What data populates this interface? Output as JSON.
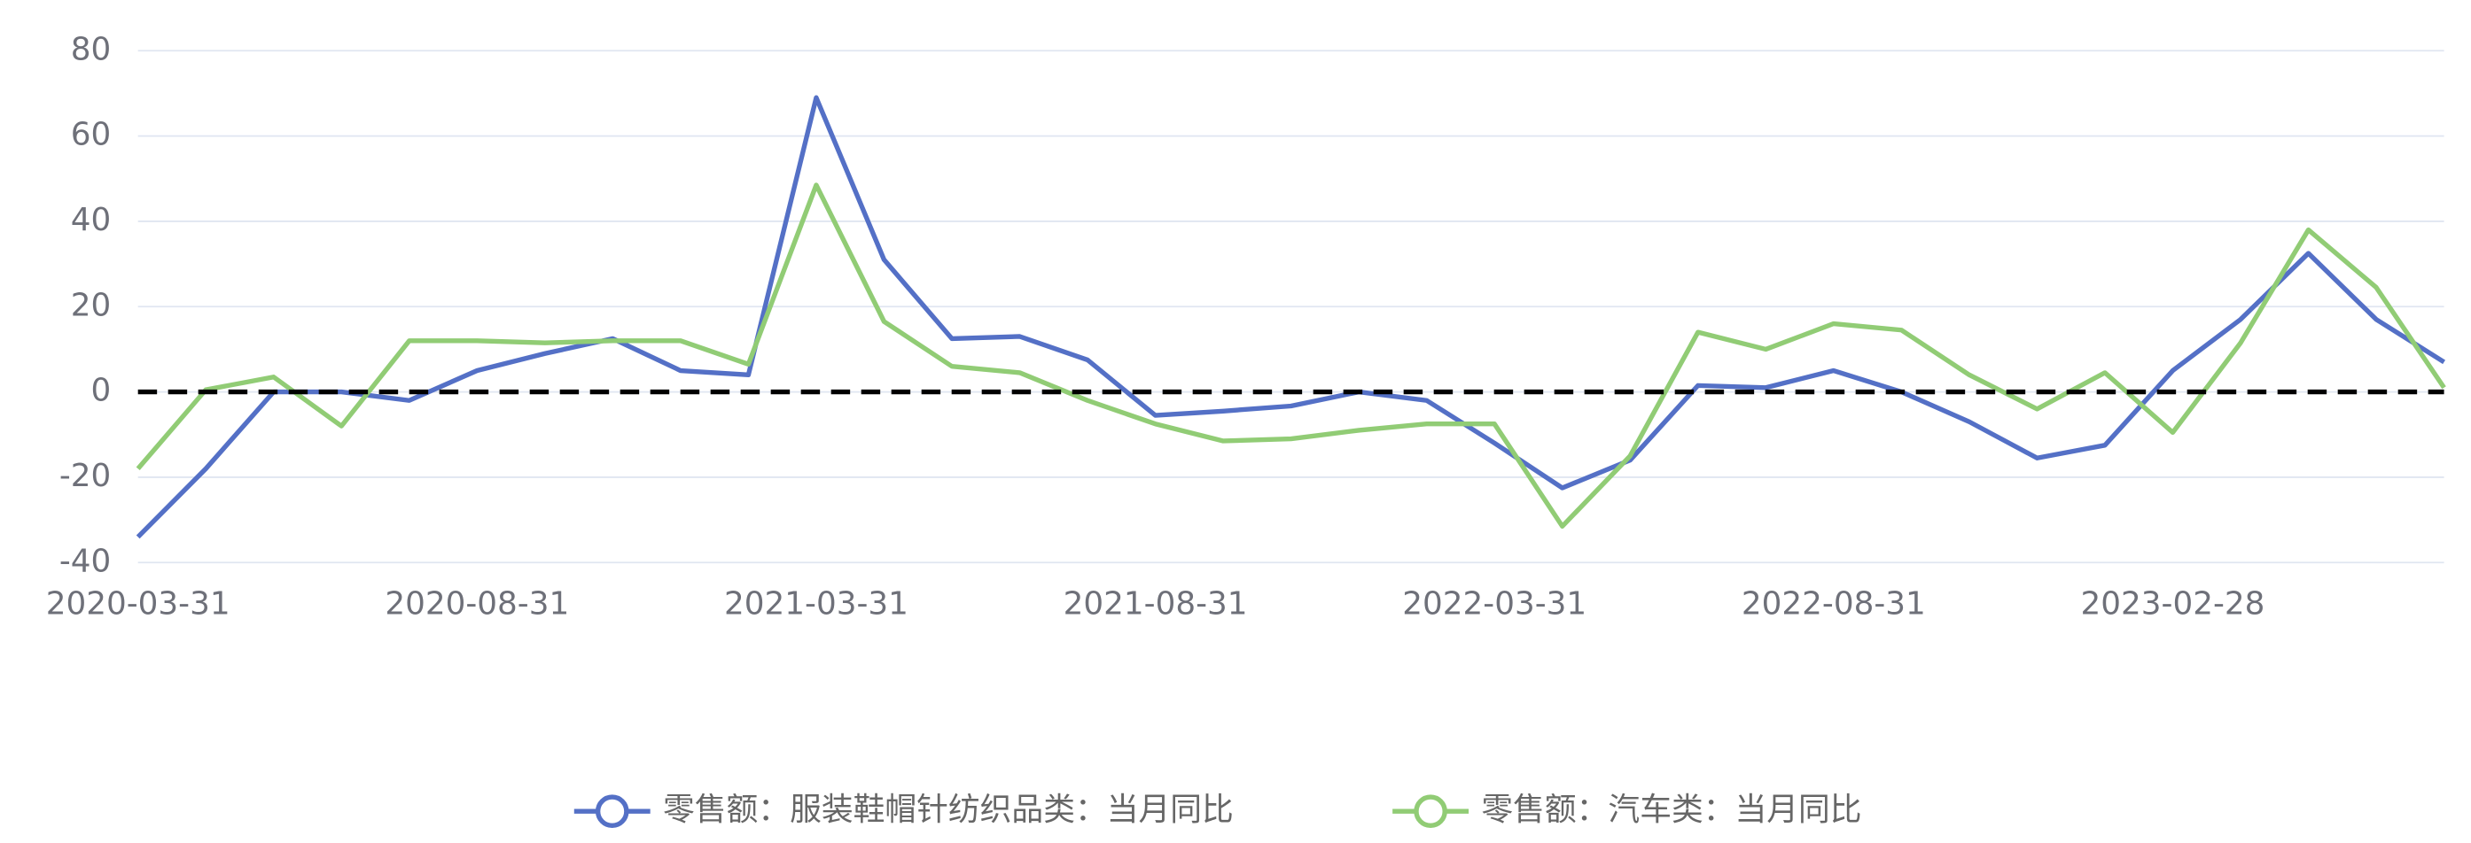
{
  "chart_data": {
    "type": "line",
    "categories": [
      "2020-03-31",
      null,
      null,
      null,
      null,
      "2020-08-31",
      null,
      null,
      null,
      null,
      "2021-03-31",
      null,
      null,
      null,
      null,
      "2021-08-31",
      null,
      null,
      null,
      null,
      "2022-03-31",
      null,
      null,
      null,
      null,
      "2022-08-31",
      null,
      null,
      null,
      null,
      "2023-02-28",
      null,
      null,
      null,
      null
    ],
    "series": [
      {
        "name": "零售额：服装鞋帽针纺织品类：当月同比",
        "color": "#5470c6",
        "values": [
          -34,
          -18,
          0,
          0,
          -2,
          5,
          9,
          12.5,
          5,
          4,
          69,
          31,
          12.5,
          13,
          7.5,
          -5.5,
          -4.5,
          -3.3,
          0,
          -2,
          -12,
          -22.5,
          -16,
          1.5,
          1,
          5,
          0,
          -7,
          -15.5,
          -12.5,
          5,
          17,
          32.5,
          17,
          7
        ]
      },
      {
        "name": "零售额：汽车类：当月同比",
        "color": "#91cc75",
        "values": [
          -18,
          0.5,
          3.5,
          -8,
          12,
          12,
          11.5,
          12,
          12,
          6.5,
          48.5,
          16.5,
          6,
          4.5,
          -2,
          -7.5,
          -11.5,
          -11,
          -9,
          -7.5,
          -7.5,
          -31.5,
          -15,
          14,
          10,
          16,
          14.5,
          4,
          -4,
          4.5,
          -9.5,
          11.5,
          38,
          24.5,
          1
        ]
      }
    ],
    "ylim": [
      -40,
      80
    ],
    "yticks": [
      -40,
      -20,
      0,
      20,
      40,
      60,
      80
    ],
    "grid": true,
    "reference_line": 0,
    "legend": "bottom"
  }
}
